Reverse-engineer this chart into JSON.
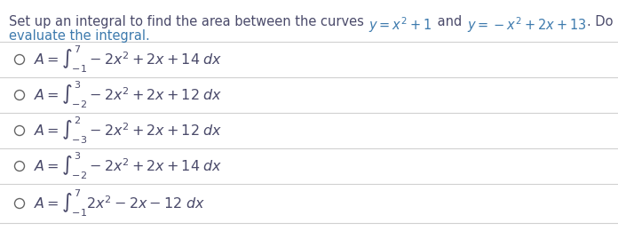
{
  "title_plain1": "Set up an integral to find the area between the curves ",
  "title_math1": "$y = x^2 + 1$",
  "title_plain2": " and ",
  "title_math2": "$y = -x^2 + 2x + 13$",
  "title_plain3": ". Do not",
  "title_line2": "evaluate the integral.",
  "title_color": "#4a4a6a",
  "math_color": "#3d7aad",
  "subtitle_color": "#3d7aad",
  "donot_color": "#4a4a6a",
  "options": [
    "$A = \\int_{-1}^{7} -2x^2 + 2x + 14 \\; dx$",
    "$A = \\int_{-2}^{3} -2x^2 + 2x + 12 \\; dx$",
    "$A = \\int_{-3}^{2} -2x^2 + 2x + 12 \\; dx$",
    "$A = \\int_{-2}^{3} -2x^2 + 2x + 14 \\; dx$",
    "$A = \\int_{-1}^{7} 2x^2 - 2x - 12 \\; dx$"
  ],
  "bg_color": "#ffffff",
  "line_color": "#d0d0d0",
  "option_color": "#4a4a6a",
  "circle_color": "#666666",
  "font_size_title": 10.5,
  "font_size_option": 11.5
}
